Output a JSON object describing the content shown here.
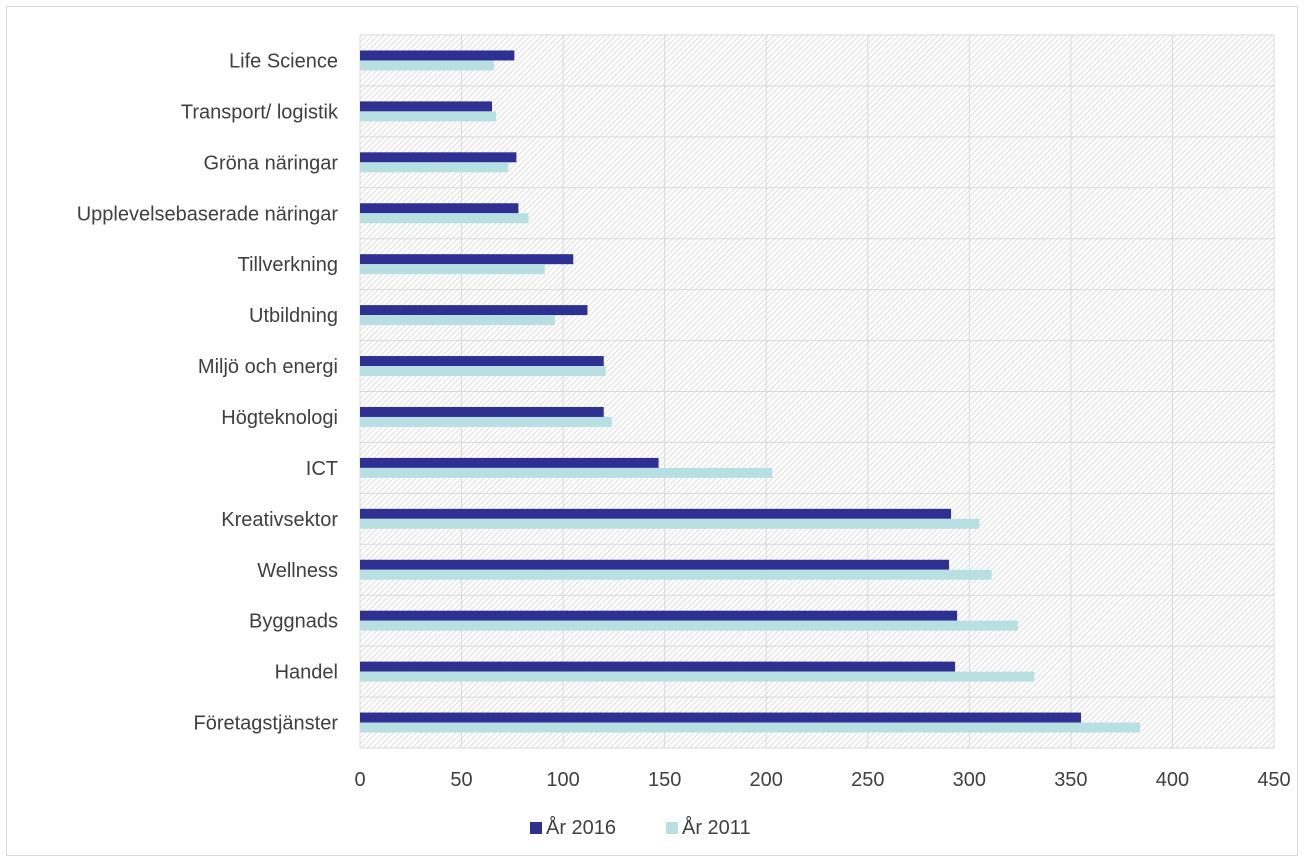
{
  "colors": {
    "series_2016": "#2e3192",
    "series_2011": "#b8e0e3",
    "grid": "#d9d9d9",
    "plot_hatch": "#d0d0d0",
    "text": "#404040"
  },
  "chart_data": {
    "type": "bar",
    "orientation": "horizontal",
    "title": "",
    "xlabel": "",
    "ylabel": "",
    "categories": [
      "Life Science",
      "Transport/ logistik",
      "Gröna näringar",
      "Upplevelsebaserade näringar",
      "Tillverkning",
      "Utbildning",
      "Miljö och energi",
      "Högteknologi",
      "ICT",
      "Kreativsektor",
      "Wellness",
      "Byggnads",
      "Handel",
      "Företagstjänster"
    ],
    "series": [
      {
        "name": "År 2016",
        "values": [
          76,
          65,
          77,
          78,
          105,
          112,
          120,
          120,
          147,
          291,
          290,
          294,
          293,
          355
        ]
      },
      {
        "name": "År 2011",
        "values": [
          66,
          67,
          73,
          83,
          91,
          96,
          121,
          124,
          203,
          305,
          311,
          324,
          332,
          384
        ]
      }
    ],
    "xlim": [
      0,
      450
    ],
    "xticks": [
      "0",
      "50",
      "100",
      "150",
      "200",
      "250",
      "300",
      "350",
      "400",
      "450"
    ],
    "grid": true,
    "legend_position": "bottom"
  }
}
